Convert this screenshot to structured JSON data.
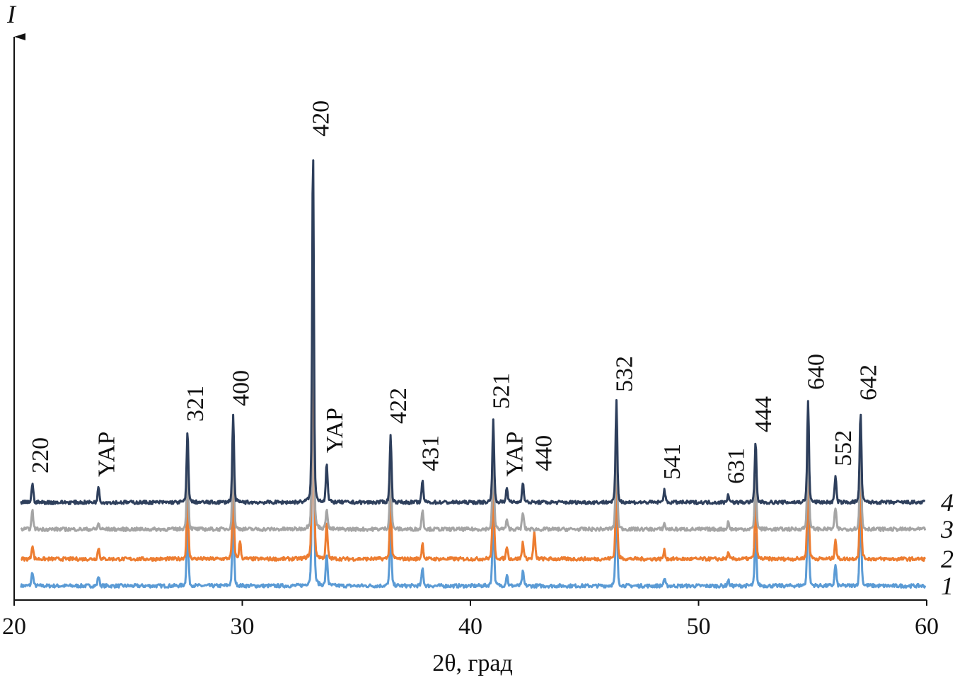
{
  "chart_data": {
    "type": "line",
    "title": "",
    "xlabel": "2θ, град",
    "ylabel": "I",
    "xlim": [
      20,
      60
    ],
    "ylim": [
      0,
      800
    ],
    "xticks": [
      "20",
      "30",
      "40",
      "50",
      "60"
    ],
    "xtick_values": [
      20,
      30,
      40,
      50,
      60
    ],
    "grid": false,
    "legend": "inline-right",
    "peak_width_deg": 0.09,
    "series": [
      {
        "name": "1",
        "color": "#5b9bd5",
        "offset": 20,
        "peaks": [
          [
            20.8,
            20
          ],
          [
            23.7,
            14
          ],
          [
            27.6,
            90
          ],
          [
            29.6,
            110
          ],
          [
            33.1,
            420
          ],
          [
            33.7,
            45
          ],
          [
            36.5,
            85
          ],
          [
            37.9,
            25
          ],
          [
            41.0,
            105
          ],
          [
            41.6,
            16
          ],
          [
            42.3,
            20
          ],
          [
            46.4,
            125
          ],
          [
            48.5,
            10
          ],
          [
            51.3,
            8
          ],
          [
            52.5,
            75
          ],
          [
            54.8,
            130
          ],
          [
            56.0,
            30
          ],
          [
            57.1,
            115
          ]
        ]
      },
      {
        "name": "2",
        "color": "#ed7d31",
        "offset": 58,
        "peaks": [
          [
            20.8,
            20
          ],
          [
            23.7,
            16
          ],
          [
            27.6,
            95
          ],
          [
            29.6,
            115
          ],
          [
            29.9,
            25
          ],
          [
            33.1,
            430
          ],
          [
            33.7,
            50
          ],
          [
            36.5,
            90
          ],
          [
            37.9,
            22
          ],
          [
            41.0,
            110
          ],
          [
            41.6,
            18
          ],
          [
            42.3,
            24
          ],
          [
            42.8,
            38
          ],
          [
            46.4,
            130
          ],
          [
            48.5,
            12
          ],
          [
            51.3,
            8
          ],
          [
            52.5,
            80
          ],
          [
            54.8,
            135
          ],
          [
            56.0,
            28
          ],
          [
            57.1,
            120
          ]
        ]
      },
      {
        "name": "3",
        "color": "#a5a5a5",
        "offset": 100,
        "peaks": [
          [
            20.8,
            26
          ],
          [
            23.7,
            8
          ],
          [
            27.6,
            95
          ],
          [
            29.6,
            115
          ],
          [
            33.1,
            440
          ],
          [
            33.7,
            30
          ],
          [
            36.5,
            92
          ],
          [
            37.9,
            28
          ],
          [
            41.0,
            112
          ],
          [
            41.6,
            12
          ],
          [
            42.3,
            24
          ],
          [
            46.4,
            135
          ],
          [
            48.5,
            8
          ],
          [
            51.3,
            10
          ],
          [
            52.5,
            80
          ],
          [
            54.8,
            140
          ],
          [
            56.0,
            30
          ],
          [
            57.1,
            125
          ]
        ]
      },
      {
        "name": "4",
        "color": "#2e3f5c",
        "offset": 138,
        "peaks": [
          [
            20.8,
            27
          ],
          [
            23.7,
            22
          ],
          [
            27.6,
            100
          ],
          [
            29.6,
            122
          ],
          [
            33.1,
            503
          ],
          [
            33.7,
            55
          ],
          [
            36.5,
            97
          ],
          [
            37.9,
            30
          ],
          [
            41.0,
            118
          ],
          [
            41.6,
            22
          ],
          [
            42.3,
            30
          ],
          [
            46.4,
            142
          ],
          [
            48.5,
            18
          ],
          [
            51.3,
            12
          ],
          [
            52.5,
            85
          ],
          [
            54.8,
            145
          ],
          [
            56.0,
            37
          ],
          [
            57.1,
            130
          ]
        ]
      }
    ],
    "annotations": [
      {
        "text": "220",
        "x": 20.8
      },
      {
        "text": "YAP",
        "x": 23.7
      },
      {
        "text": "321",
        "x": 27.6
      },
      {
        "text": "400",
        "x": 29.6
      },
      {
        "text": "420",
        "x": 33.1
      },
      {
        "text": "YAP",
        "x": 33.7
      },
      {
        "text": "422",
        "x": 36.5
      },
      {
        "text": "431",
        "x": 37.9
      },
      {
        "text": "521",
        "x": 41.0
      },
      {
        "text": "YAP",
        "x": 41.6
      },
      {
        "text": "440",
        "x": 42.3
      },
      {
        "text": "532",
        "x": 46.4
      },
      {
        "text": "541",
        "x": 48.5
      },
      {
        "text": "631",
        "x": 51.3
      },
      {
        "text": "444",
        "x": 52.5
      },
      {
        "text": "640",
        "x": 54.8
      },
      {
        "text": "552",
        "x": 56.0
      },
      {
        "text": "642",
        "x": 57.1
      }
    ]
  }
}
